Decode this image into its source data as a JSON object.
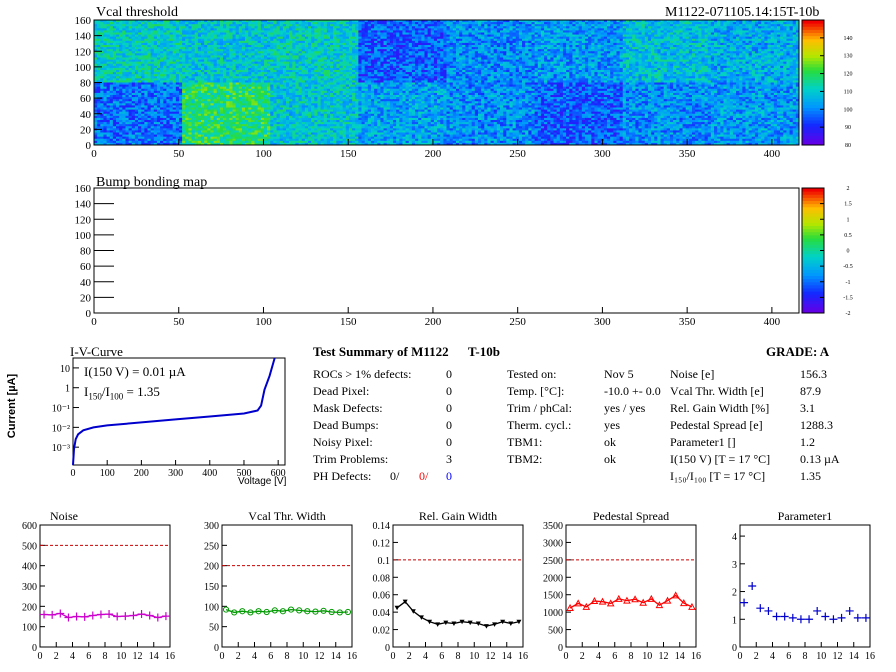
{
  "header": {
    "map1_title": "Vcal threshold",
    "module_id": "M1122-071105.14:15T-10b",
    "map2_title": "Bump bonding map"
  },
  "maps": {
    "x_ticks": [
      "0",
      "50",
      "100",
      "150",
      "200",
      "250",
      "300",
      "350",
      "400"
    ],
    "y_ticks": [
      "0",
      "20",
      "40",
      "60",
      "80",
      "100",
      "120",
      "140",
      "160"
    ],
    "x_range": [
      0,
      416
    ],
    "y_range": [
      0,
      160
    ],
    "colorbar1": {
      "ticks": [
        "80",
        "90",
        "100",
        "110",
        "120",
        "130",
        "140"
      ],
      "range": [
        80,
        150
      ]
    },
    "colorbar2": {
      "ticks": [
        "-2",
        "-1.5",
        "-1",
        "-0.5",
        "0",
        "0.5",
        "1",
        "1.5",
        "2"
      ],
      "range": [
        -2,
        2
      ]
    },
    "roc_levels_top": [
      0.45,
      0.42,
      0.44,
      0.22,
      0.3,
      0.32,
      0.4,
      0.36
    ],
    "roc_levels_bottom": [
      0.25,
      0.55,
      0.42,
      0.34,
      0.3,
      0.22,
      0.3,
      0.32
    ]
  },
  "iv": {
    "title": "I-V-Curve",
    "ylabel": "Current [µA]",
    "xlabel": "Voltage [V]",
    "x_ticks": [
      "0",
      "100",
      "200",
      "300",
      "400",
      "500",
      "600"
    ],
    "y_ticks": [
      "10⁻³",
      "10⁻²",
      "10⁻¹",
      "1",
      "10"
    ],
    "i150": "I(150 V) = 0.01 µA",
    "ratio_label": "I",
    "ratio_sub1": "150",
    "ratio_sep": "/I",
    "ratio_sub2": "100",
    "ratio_value": "=  1.35",
    "color": "#0000cc"
  },
  "summary": {
    "title": "Test Summary of M1122",
    "subtitle": "T-10b",
    "grade": "GRADE:  A",
    "left": [
      {
        "label": "ROCs > 1% defects:",
        "value": "0"
      },
      {
        "label": "Dead Pixel:",
        "value": "0"
      },
      {
        "label": "Mask Defects:",
        "value": "0"
      },
      {
        "label": "Dead Bumps:",
        "value": "0"
      },
      {
        "label": "Noisy Pixel:",
        "value": "0"
      },
      {
        "label": "Trim Problems:",
        "value": "3"
      }
    ],
    "ph_label": "PH Defects:",
    "ph_values": [
      "0/",
      "0/",
      "0"
    ],
    "ph_colors": [
      "#000000",
      "#ff0000",
      "#0000ff"
    ],
    "middle": [
      {
        "label": "Tested on:",
        "value": "Nov 5"
      },
      {
        "label": "Temp. [°C]:",
        "value": "-10.0 +- 0.0"
      },
      {
        "label": "Trim / phCal:",
        "value": "yes / yes"
      },
      {
        "label": "Therm. cycl.:",
        "value": "yes"
      },
      {
        "label": "TBM1:",
        "value": "ok"
      },
      {
        "label": "TBM2:",
        "value": "ok"
      }
    ],
    "right": [
      {
        "label": "Noise [e]",
        "value": "156.3"
      },
      {
        "label": "Vcal Thr. Width [e]",
        "value": "87.9"
      },
      {
        "label": "Rel. Gain Width [%]",
        "value": "3.1"
      },
      {
        "label": "Pedestal Spread [e]",
        "value": "1288.3"
      },
      {
        "label": "Parameter1 []",
        "value": "1.2"
      },
      {
        "label": "I(150 V) [T = 17 °C]",
        "value": "0.13 µA"
      },
      {
        "label": "I₁₅₀/I₁₀₀  [T = 17 °C]",
        "value": "1.35"
      }
    ]
  },
  "chart_data": [
    {
      "type": "line",
      "title": "Noise",
      "color": "#cc00cc",
      "marker": "plus",
      "x": [
        0,
        1,
        2,
        3,
        4,
        5,
        6,
        7,
        8,
        9,
        10,
        11,
        12,
        13,
        14,
        15
      ],
      "values": [
        160,
        158,
        165,
        145,
        150,
        148,
        155,
        160,
        162,
        150,
        152,
        155,
        162,
        155,
        145,
        152
      ],
      "ylim": [
        0,
        600
      ],
      "xlim": [
        0,
        16
      ],
      "cut": 500,
      "y_ticks": [
        0,
        100,
        200,
        300,
        400,
        500,
        600
      ],
      "x_ticks": [
        0,
        2,
        4,
        6,
        8,
        10,
        12,
        14,
        16
      ]
    },
    {
      "type": "line",
      "title": "Vcal Thr. Width",
      "color": "#009900",
      "marker": "circle",
      "x": [
        0,
        1,
        2,
        3,
        4,
        5,
        6,
        7,
        8,
        9,
        10,
        11,
        12,
        13,
        14,
        15
      ],
      "values": [
        92,
        85,
        88,
        85,
        88,
        86,
        90,
        88,
        92,
        90,
        88,
        87,
        89,
        86,
        85,
        86
      ],
      "ylim": [
        0,
        300
      ],
      "xlim": [
        0,
        16
      ],
      "cut": 200,
      "y_ticks": [
        0,
        50,
        100,
        150,
        200,
        250,
        300
      ],
      "x_ticks": [
        0,
        2,
        4,
        6,
        8,
        10,
        12,
        14,
        16
      ]
    },
    {
      "type": "line",
      "title": "Rel. Gain Width",
      "color": "#000000",
      "marker": "triangle-down",
      "x": [
        0,
        1,
        2,
        3,
        4,
        5,
        6,
        7,
        8,
        9,
        10,
        11,
        12,
        13,
        14,
        15
      ],
      "values": [
        0.045,
        0.052,
        0.041,
        0.034,
        0.029,
        0.026,
        0.028,
        0.027,
        0.029,
        0.028,
        0.027,
        0.024,
        0.026,
        0.029,
        0.027,
        0.029
      ],
      "ylim": [
        0,
        0.14
      ],
      "xlim": [
        0,
        16
      ],
      "cut": 0.1,
      "y_ticks": [
        0,
        0.02,
        0.04,
        0.06,
        0.08,
        0.1,
        0.12,
        0.14
      ],
      "x_ticks": [
        0,
        2,
        4,
        6,
        8,
        10,
        12,
        14,
        16
      ]
    },
    {
      "type": "line",
      "title": "Pedestal Spread",
      "color": "#ff0000",
      "marker": "triangle-up",
      "x": [
        0,
        1,
        2,
        3,
        4,
        5,
        6,
        7,
        8,
        9,
        10,
        11,
        12,
        13,
        14,
        15
      ],
      "values": [
        1120,
        1250,
        1150,
        1320,
        1300,
        1250,
        1380,
        1330,
        1370,
        1270,
        1380,
        1200,
        1330,
        1480,
        1260,
        1150
      ],
      "ylim": [
        0,
        3500
      ],
      "xlim": [
        0,
        16
      ],
      "cut": 2500,
      "y_ticks": [
        0,
        500,
        1000,
        1500,
        2000,
        2500,
        3000,
        3500
      ],
      "x_ticks": [
        0,
        2,
        4,
        6,
        8,
        10,
        12,
        14,
        16
      ]
    },
    {
      "type": "scatter",
      "title": "Parameter1",
      "color": "#0000cc",
      "marker": "cross",
      "x": [
        0,
        1,
        2,
        3,
        4,
        5,
        6,
        7,
        8,
        9,
        10,
        11,
        12,
        13,
        14,
        15
      ],
      "values": [
        1.6,
        2.2,
        1.4,
        1.3,
        1.1,
        1.1,
        1.05,
        1.0,
        1.0,
        1.3,
        1.1,
        1.0,
        1.05,
        1.3,
        1.05,
        1.05
      ],
      "ylim": [
        0,
        4.4
      ],
      "xlim": [
        0,
        16
      ],
      "y_ticks": [
        0,
        1,
        2,
        3,
        4
      ],
      "x_ticks": [
        0,
        2,
        4,
        6,
        8,
        10,
        12,
        14,
        16
      ]
    }
  ]
}
